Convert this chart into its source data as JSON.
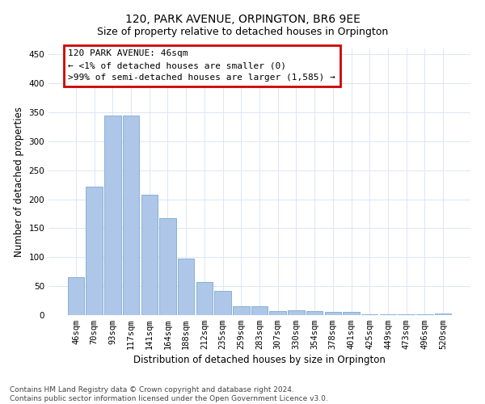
{
  "title": "120, PARK AVENUE, ORPINGTON, BR6 9EE",
  "subtitle": "Size of property relative to detached houses in Orpington",
  "xlabel": "Distribution of detached houses by size in Orpington",
  "ylabel": "Number of detached properties",
  "categories": [
    "46sqm",
    "70sqm",
    "93sqm",
    "117sqm",
    "141sqm",
    "164sqm",
    "188sqm",
    "212sqm",
    "235sqm",
    "259sqm",
    "283sqm",
    "307sqm",
    "330sqm",
    "354sqm",
    "378sqm",
    "401sqm",
    "425sqm",
    "449sqm",
    "473sqm",
    "496sqm",
    "520sqm"
  ],
  "values": [
    65,
    222,
    345,
    345,
    208,
    167,
    97,
    57,
    42,
    15,
    15,
    7,
    8,
    7,
    5,
    5,
    1,
    1,
    1,
    1,
    3
  ],
  "bar_color": "#aec6e8",
  "bar_edge_color": "#7aaad0",
  "annotation_box_color": "#cc0000",
  "annotation_text_line1": "120 PARK AVENUE: 46sqm",
  "annotation_text_line2": "← <1% of detached houses are smaller (0)",
  "annotation_text_line3": ">99% of semi-detached houses are larger (1,585) →",
  "ylim": [
    0,
    460
  ],
  "yticks": [
    0,
    50,
    100,
    150,
    200,
    250,
    300,
    350,
    400,
    450
  ],
  "footer_line1": "Contains HM Land Registry data © Crown copyright and database right 2024.",
  "footer_line2": "Contains public sector information licensed under the Open Government Licence v3.0.",
  "bg_color": "#ffffff",
  "grid_color": "#dce6f5",
  "title_fontsize": 10,
  "subtitle_fontsize": 9,
  "axis_label_fontsize": 8.5,
  "tick_fontsize": 7.5,
  "annotation_fontsize": 8,
  "footer_fontsize": 6.5
}
